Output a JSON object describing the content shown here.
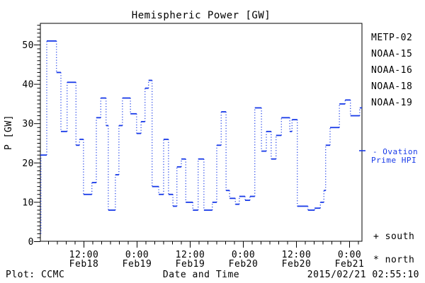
{
  "title": "Hemispheric Power [GW]",
  "y_axis": {
    "label": "P [GW]",
    "ticks": [
      {
        "v": 0,
        "label": "0"
      },
      {
        "v": 10,
        "label": "10"
      },
      {
        "v": 20,
        "label": "20"
      },
      {
        "v": 30,
        "label": "30"
      },
      {
        "v": 40,
        "label": "40"
      },
      {
        "v": 50,
        "label": "50"
      }
    ],
    "minor_step": 1,
    "max": 55.5
  },
  "x_axis": {
    "footer_label": "Date and Time",
    "minor_step_hours": 2,
    "t_start": 2.16,
    "t_end": 74.8,
    "major_ticks": [
      {
        "t": 12,
        "time": "12:00",
        "date": "Feb18"
      },
      {
        "t": 24,
        "time": "0:00",
        "date": "Feb19"
      },
      {
        "t": 36,
        "time": "12:00",
        "date": "Feb19"
      },
      {
        "t": 48,
        "time": "0:00",
        "date": "Feb20"
      },
      {
        "t": 60,
        "time": "12:00",
        "date": "Feb20"
      },
      {
        "t": 72,
        "time": "0:00",
        "date": "Feb21"
      }
    ]
  },
  "legend": {
    "satellites": [
      {
        "label": "METP-02",
        "color": "#000000"
      },
      {
        "label": "NOAA-15",
        "color": "#1739e8"
      },
      {
        "label": "NOAA-16",
        "color": "#00bfee"
      },
      {
        "label": "NOAA-18",
        "color": "#63e57f"
      },
      {
        "label": "NOAA-19",
        "color": "#ff9d1c"
      }
    ],
    "line_label_1": "- Ovation",
    "line_label_2": "Prime HPI",
    "south_label": "+ south",
    "north_label": "* north"
  },
  "footer": {
    "credit": "Plot: CCMC",
    "timestamp": "2015/02/21 02:55:10"
  },
  "chart_data": {
    "type": "line",
    "style": "step-dotted",
    "title": "Hemispheric Power [GW]",
    "xlabel": "Date and Time",
    "ylabel": "P [GW]",
    "ylim": [
      0,
      55.5
    ],
    "xlim_hours_since_2015_02_18_00UT": [
      2.16,
      74.8
    ],
    "x_tick_labels": [
      "12:00 Feb18",
      "0:00 Feb19",
      "12:00 Feb19",
      "0:00 Feb20",
      "12:00 Feb20",
      "0:00 Feb21"
    ],
    "line_color": "#1739e8",
    "legend_position": "right-outside",
    "grid": false,
    "series": [
      {
        "name": "Ovation Prime HPI",
        "t_unit": "hours since 2015-02-18 00:00 UT",
        "steps": [
          [
            2.16,
            22
          ],
          [
            3.6,
            51
          ],
          [
            5.8,
            43
          ],
          [
            6.8,
            28
          ],
          [
            8.2,
            40.5
          ],
          [
            10.2,
            24.5
          ],
          [
            11.0,
            26
          ],
          [
            11.9,
            12
          ],
          [
            13.8,
            15
          ],
          [
            14.8,
            31.5
          ],
          [
            15.8,
            36.5
          ],
          [
            17.0,
            29.5
          ],
          [
            17.5,
            8
          ],
          [
            19.1,
            17
          ],
          [
            19.9,
            29.5
          ],
          [
            20.7,
            36.5
          ],
          [
            22.5,
            32.5
          ],
          [
            23.9,
            27.5
          ],
          [
            24.9,
            30.5
          ],
          [
            25.8,
            39
          ],
          [
            26.6,
            41
          ],
          [
            27.4,
            14
          ],
          [
            28.9,
            12
          ],
          [
            30.0,
            26
          ],
          [
            31.1,
            12
          ],
          [
            32.1,
            9
          ],
          [
            33.0,
            19
          ],
          [
            34.0,
            21
          ],
          [
            35.0,
            10
          ],
          [
            36.6,
            8
          ],
          [
            37.8,
            21
          ],
          [
            39.1,
            8
          ],
          [
            41.0,
            10
          ],
          [
            42.0,
            24.5
          ],
          [
            43.0,
            33
          ],
          [
            44.1,
            13
          ],
          [
            44.9,
            11
          ],
          [
            46.2,
            9.5
          ],
          [
            47.1,
            11.5
          ],
          [
            48.4,
            10.5
          ],
          [
            49.5,
            11.5
          ],
          [
            50.6,
            34
          ],
          [
            52.1,
            23
          ],
          [
            53.2,
            28
          ],
          [
            54.3,
            21
          ],
          [
            55.4,
            27
          ],
          [
            56.6,
            31.5
          ],
          [
            58.5,
            28
          ],
          [
            59.0,
            31
          ],
          [
            60.2,
            9
          ],
          [
            62.6,
            8
          ],
          [
            64.1,
            8.5
          ],
          [
            65.4,
            10
          ],
          [
            66.2,
            13
          ],
          [
            66.6,
            24.5
          ],
          [
            67.6,
            29
          ],
          [
            69.7,
            35
          ],
          [
            71.0,
            36
          ],
          [
            72.2,
            32
          ],
          [
            74.3,
            34
          ]
        ]
      }
    ]
  }
}
